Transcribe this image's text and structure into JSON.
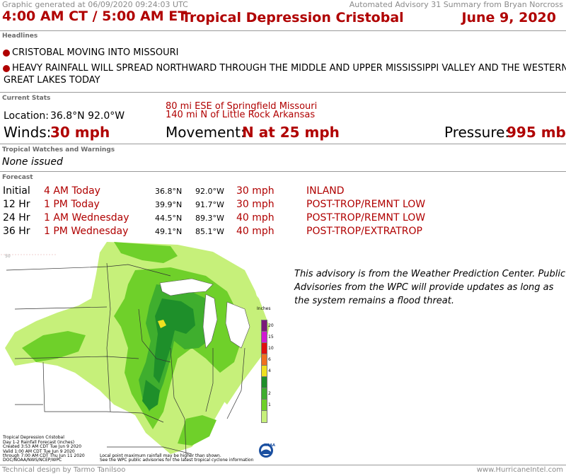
{
  "header": {
    "generated": "Graphic generated at 06/09/2020 09:24:03 UTC",
    "summary_source": "Automated Advisory 31 Summary from Bryan Norcross",
    "time": "4:00 AM CT / 5:00 AM ET",
    "storm_name": "Tropical Depression Cristobal",
    "date": "June 9, 2020"
  },
  "headlines": {
    "label": "Headlines",
    "items": [
      "CRISTOBAL MOVING INTO MISSOURI",
      "HEAVY RAINFALL WILL SPREAD NORTHWARD THROUGH THE MIDDLE AND UPPER MISSISSIPPI VALLEY AND THE WESTERN",
      "GREAT LAKES TODAY"
    ]
  },
  "current_stats": {
    "label": "Current Stats",
    "location_label": "Location:",
    "location_value": "36.8°N 92.0°W",
    "reference_1": "80 mi ESE of Springfield Missouri",
    "reference_2": "140 mi N of Little Rock Arkansas",
    "winds_label": "Winds:",
    "winds_value": "30 mph",
    "movement_label": "Movement:",
    "movement_value": "N at 25 mph",
    "pressure_label": "Pressure:",
    "pressure_value": "995 mb"
  },
  "watches": {
    "label": "Tropical Watches and Warnings",
    "value": "None issued"
  },
  "forecast": {
    "label": "Forecast",
    "rows": [
      {
        "period": "Initial",
        "time": "4 AM Today",
        "lat": "36.8°N",
        "lon": "92.0°W",
        "wind": "30 mph",
        "status": "INLAND"
      },
      {
        "period": "12 Hr",
        "time": "1 PM Today",
        "lat": "39.9°N",
        "lon": "91.7°W",
        "wind": "30 mph",
        "status": "POST-TROP/REMNT LOW"
      },
      {
        "period": "24 Hr",
        "time": "1 AM Wednesday",
        "lat": "44.5°N",
        "lon": "89.3°W",
        "wind": "40 mph",
        "status": "POST-TROP/REMNT LOW"
      },
      {
        "period": "36 Hr",
        "time": "1 PM Wednesday",
        "lat": "49.1°N",
        "lon": "85.1°W",
        "wind": "40 mph",
        "status": "POST-TROP/EXTRATROP"
      }
    ]
  },
  "map": {
    "lat_label": "50",
    "legend_title": "Inches",
    "legend_values": [
      "20",
      "15",
      "10",
      "6",
      "4",
      "2",
      "1"
    ],
    "legend_colors": [
      "#7a1a7a",
      "#d11ad1",
      "#e01010",
      "#f07020",
      "#f0e020",
      "#1e8f2a",
      "#3fae2e",
      "#6fd02a",
      "#c6f07a"
    ],
    "caption": [
      "Tropical Depression Cristobal",
      "Day 1-2 Rainfall Forecast (inches)",
      "Created 3:53 AM CDT Tue Jun 9 2020",
      "Valid 1:00 AM CDT Tue Jun 9 2020",
      "through 7:00 AM CDT Thu Jun 11 2020",
      "DOC/NOAA/NWS/NCEP/WPC"
    ],
    "footnote_1": "Local point maximum rainfall may be higher than shown.",
    "footnote_2": "See the WPC public advisories for the latest tropical cyclone information",
    "logo_text": "NOAA"
  },
  "advisory_note": [
    "This advisory is from the Weather Prediction Center. Public",
    "Advisories from the WPC will provide updates as long as",
    "the system remains a flood threat."
  ],
  "footer": {
    "credit": "Technical design by Tarmo Tanilsoo",
    "site": "www.HurricaneIntel.com"
  }
}
